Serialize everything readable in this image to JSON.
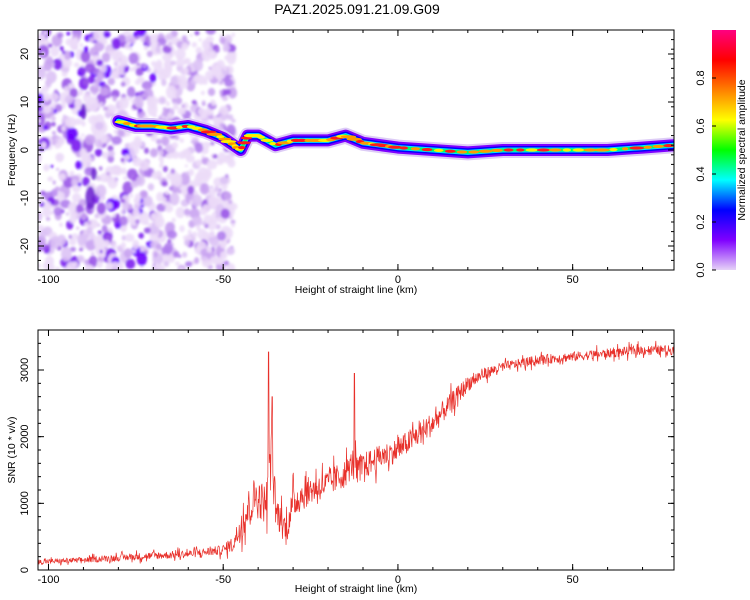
{
  "title": "PAZ1.2025.091.21.09.G09",
  "chart_data": [
    {
      "type": "heatmap",
      "title": "PAZ1.2025.091.21.09.G09",
      "xlabel": "Height of straight line (km)",
      "ylabel": "Frequency (Hz)",
      "xlim": [
        -103,
        79
      ],
      "ylim": [
        -25,
        25
      ],
      "xticks": [
        -100,
        -50,
        0,
        50
      ],
      "yticks": [
        -20,
        -10,
        0,
        10,
        20
      ],
      "colorbar": {
        "label": "Normalized spectral amplitude",
        "range": [
          0,
          1
        ],
        "ticks": [
          "0.0",
          "0.2",
          "0.4",
          "0.6",
          "0.8"
        ],
        "colors": [
          "#e6d3f7",
          "#7f00ff",
          "#0000ff",
          "#00ffff",
          "#00ff00",
          "#ffff00",
          "#ff8000",
          "#ff0000",
          "#ff0080"
        ]
      },
      "ridge": {
        "x": [
          -80,
          -75,
          -70,
          -65,
          -60,
          -55,
          -50,
          -47,
          -45,
          -43,
          -40,
          -35,
          -30,
          -25,
          -20,
          -15,
          -10,
          -5,
          0,
          10,
          20,
          30,
          40,
          50,
          60,
          70,
          79
        ],
        "freq": [
          6,
          5,
          5,
          4.5,
          5,
          4,
          2.5,
          1,
          0,
          3,
          3,
          1,
          2,
          2,
          2,
          3,
          1.5,
          1,
          0.5,
          0,
          -0.5,
          0,
          0,
          0,
          0,
          0.5,
          1
        ]
      }
    },
    {
      "type": "line",
      "xlabel": "Height of straight line (km)",
      "ylabel": "SNR (10 * v/v)",
      "xlim": [
        -103,
        79
      ],
      "ylim": [
        0,
        3600
      ],
      "xticks": [
        -100,
        -50,
        0,
        50
      ],
      "yticks": [
        0,
        1000,
        2000,
        3000
      ],
      "color": "#e8302a",
      "envelope": {
        "x": [
          -103,
          -90,
          -75,
          -60,
          -50,
          -47,
          -44,
          -41,
          -38,
          -37,
          -36.5,
          -35,
          -32,
          -30,
          -28,
          -25,
          -20,
          -15,
          -13,
          -12.5,
          -12,
          -10,
          -5,
          0,
          5,
          10,
          15,
          20,
          25,
          30,
          40,
          50,
          60,
          70,
          79
        ],
        "mean": [
          120,
          150,
          200,
          240,
          300,
          400,
          800,
          1100,
          1000,
          1200,
          1800,
          900,
          600,
          1000,
          1100,
          1200,
          1300,
          1450,
          1600,
          1700,
          1500,
          1550,
          1700,
          1800,
          2000,
          2200,
          2500,
          2800,
          2950,
          3050,
          3150,
          3200,
          3250,
          3300,
          3300
        ],
        "spread": [
          60,
          70,
          90,
          100,
          120,
          200,
          500,
          500,
          500,
          500,
          500,
          400,
          400,
          400,
          400,
          350,
          350,
          350,
          350,
          350,
          350,
          350,
          300,
          300,
          300,
          300,
          250,
          200,
          150,
          120,
          120,
          120,
          120,
          120,
          120
        ]
      },
      "spikes": [
        {
          "x": -37,
          "y": 3270
        },
        {
          "x": -12.5,
          "y": 2950
        },
        {
          "x": -36,
          "y": 2600
        }
      ]
    }
  ]
}
